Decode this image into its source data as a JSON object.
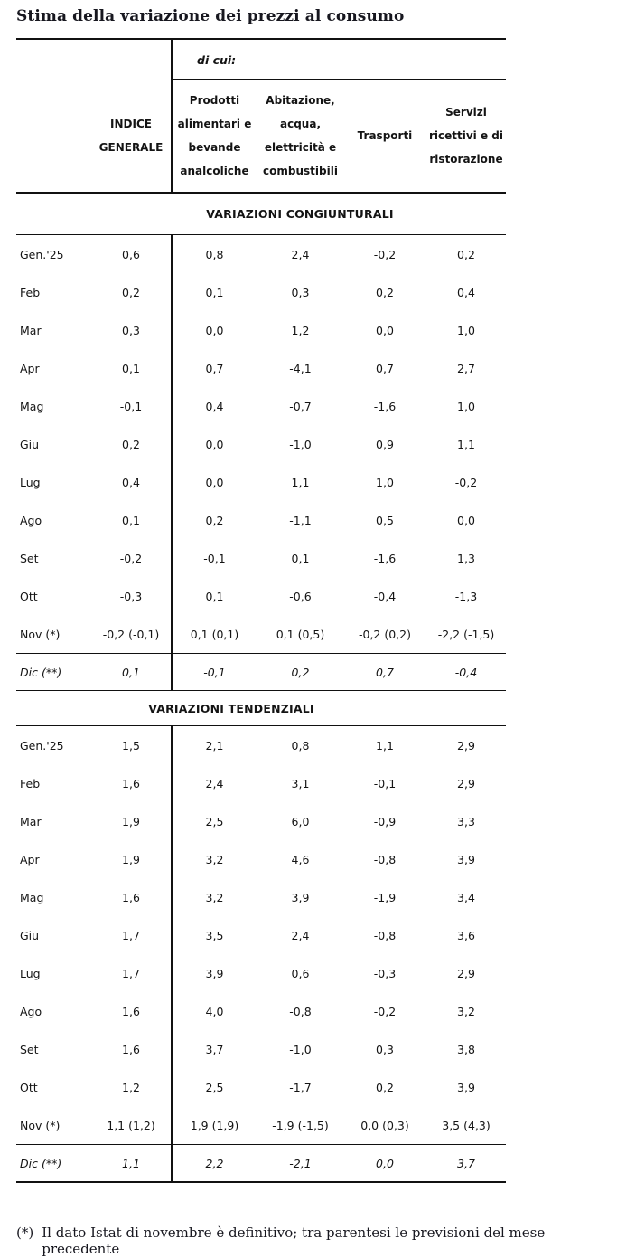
{
  "title": "Stima della variazione dei prezzi al consumo",
  "table": {
    "group_label": "di cui:",
    "col_headers": {
      "index": "INDICE\nGENERALE",
      "food": "Prodotti\nalimentari e\nbevande\nanalcoliche",
      "housing": "Abitazione,\nacqua,\nelettricità e\ncombustibili",
      "transport": "Trasporti",
      "services": "Servizi\nricettivi e di\nristorazione"
    },
    "sections": [
      {
        "heading": "VARIAZIONI CONGIUNTURALI",
        "rows": [
          {
            "label": "Gen.'25",
            "values": [
              "0,6",
              "0,8",
              "2,4",
              "-0,2",
              "0,2"
            ]
          },
          {
            "label": "Feb",
            "values": [
              "0,2",
              "0,1",
              "0,3",
              "0,2",
              "0,4"
            ]
          },
          {
            "label": "Mar",
            "values": [
              "0,3",
              "0,0",
              "1,2",
              "0,0",
              "1,0"
            ]
          },
          {
            "label": "Apr",
            "values": [
              "0,1",
              "0,7",
              "-4,1",
              "0,7",
              "2,7"
            ]
          },
          {
            "label": "Mag",
            "values": [
              "-0,1",
              "0,4",
              "-0,7",
              "-1,6",
              "1,0"
            ]
          },
          {
            "label": "Giu",
            "values": [
              "0,2",
              "0,0",
              "-1,0",
              "0,9",
              "1,1"
            ]
          },
          {
            "label": "Lug",
            "values": [
              "0,4",
              "0,0",
              "1,1",
              "1,0",
              "-0,2"
            ]
          },
          {
            "label": "Ago",
            "values": [
              "0,1",
              "0,2",
              "-1,1",
              "0,5",
              "0,0"
            ]
          },
          {
            "label": "Set",
            "values": [
              "-0,2",
              "-0,1",
              "0,1",
              "-1,6",
              "1,3"
            ]
          },
          {
            "label": "Ott",
            "values": [
              "-0,3",
              "0,1",
              "-0,6",
              "-0,4",
              "-1,3"
            ]
          },
          {
            "label": "Nov (*)",
            "values": [
              "-0,2 (-0,1)",
              "0,1 (0,1)",
              "0,1 (0,5)",
              "-0,2 (0,2)",
              "-2,2 (-1,5)"
            ]
          },
          {
            "label": "Dic (**)",
            "values": [
              "0,1",
              "-0,1",
              "0,2",
              "0,7",
              "-0,4"
            ]
          }
        ]
      },
      {
        "heading": "VARIAZIONI TENDENZIALI",
        "rows": [
          {
            "label": "Gen.'25",
            "values": [
              "1,5",
              "2,1",
              "0,8",
              "1,1",
              "2,9"
            ]
          },
          {
            "label": "Feb",
            "values": [
              "1,6",
              "2,4",
              "3,1",
              "-0,1",
              "2,9"
            ]
          },
          {
            "label": "Mar",
            "values": [
              "1,9",
              "2,5",
              "6,0",
              "-0,9",
              "3,3"
            ]
          },
          {
            "label": "Apr",
            "values": [
              "1,9",
              "3,2",
              "4,6",
              "-0,8",
              "3,9"
            ]
          },
          {
            "label": "Mag",
            "values": [
              "1,6",
              "3,2",
              "3,9",
              "-1,9",
              "3,4"
            ]
          },
          {
            "label": "Giu",
            "values": [
              "1,7",
              "3,5",
              "2,4",
              "-0,8",
              "3,6"
            ]
          },
          {
            "label": "Lug",
            "values": [
              "1,7",
              "3,9",
              "0,6",
              "-0,3",
              "2,9"
            ]
          },
          {
            "label": "Ago",
            "values": [
              "1,6",
              "4,0",
              "-0,8",
              "-0,2",
              "3,2"
            ]
          },
          {
            "label": "Set",
            "values": [
              "1,6",
              "3,7",
              "-1,0",
              "0,3",
              "3,8"
            ]
          },
          {
            "label": "Ott",
            "values": [
              "1,2",
              "2,5",
              "-1,7",
              "0,2",
              "3,9"
            ]
          },
          {
            "label": "Nov (*)",
            "values": [
              "1,1 (1,2)",
              "1,9 (1,9)",
              "-1,9 (-1,5)",
              "0,0 (0,3)",
              "3,5 (4,3)"
            ]
          },
          {
            "label": "Dic (**)",
            "values": [
              "1,1",
              "2,2",
              "-2,1",
              "0,0",
              "3,7"
            ]
          }
        ]
      }
    ]
  },
  "footnote": {
    "marker": "(*)",
    "text": "Il dato Istat di novembre è definitivo; tra parentesi le previsioni del mese precedente"
  }
}
